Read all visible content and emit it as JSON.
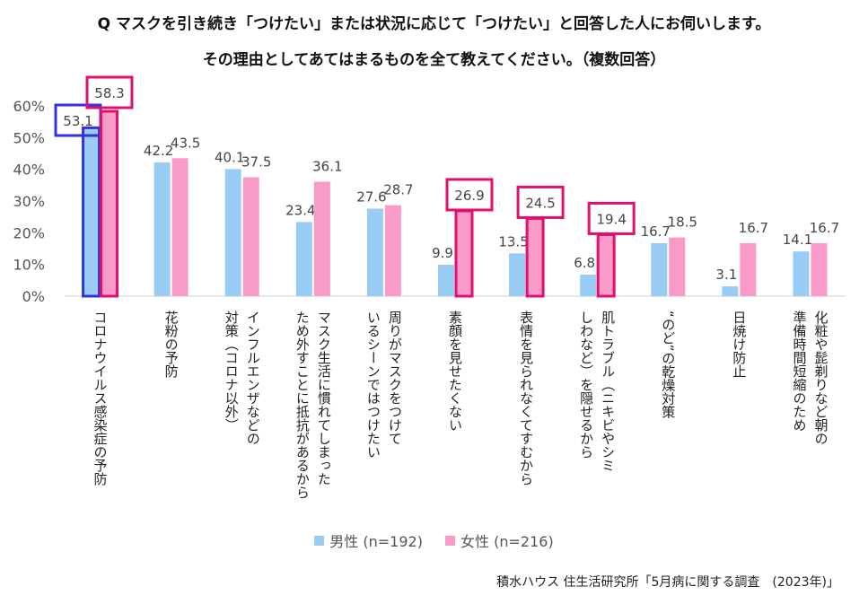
{
  "title_line1": "Q マスクを引き続き「つけたい」または状況に応じて「つけたい」と回答した人にお伺いします。",
  "title_line2": "その理由としてあてはまるものを全て教えてください。（複数回答）",
  "source": "積水ハウス 住生活研究所「5月病に関する調査　(2023年)」",
  "colors": {
    "male": "#99ccf5",
    "female": "#f99bc9",
    "highlight_blue": "#3333dd",
    "highlight_pink": "#e0106e"
  },
  "chart_data": {
    "type": "bar",
    "categories": [
      "コロナウイルス感染症の予防",
      "花粉の予防",
      "インフルエンザなどの対策（コロナ以外）",
      "マスク生活に慣れてしまったため外すことに抵抗があるから",
      "周りがマスクをつけているシーンではつけたい",
      "素顔を見せたくない",
      "表情を見られなくてすむから",
      "肌トラブル（ニキビやシミしわなど）を隠せるから",
      "“のど”の乾燥対策",
      "日焼け防止",
      "化粧や髭剃りなど朝の準備時間短縮のため"
    ],
    "category_lines": [
      [
        "コロナウイルス感染症の予防"
      ],
      [
        "花粉の予防"
      ],
      [
        "インフルエンザなどの",
        "対策（コロナ以外）"
      ],
      [
        "マスク生活に慣れてしまった",
        "ため外すことに抵抗があるから"
      ],
      [
        "周りがマスクをつけて",
        "いるシーンではつけたい"
      ],
      [
        "素顔を見せたくない"
      ],
      [
        "表情を見られなくてすむから"
      ],
      [
        "肌トラブル（ニキビやシミ",
        "しわなど）を隠せるから"
      ],
      [
        "“のど”の乾燥対策"
      ],
      [
        "日焼け防止"
      ],
      [
        "化粧や髭剃りなど朝の",
        "準備時間短縮のため"
      ]
    ],
    "series": [
      {
        "name": "男性 (n=192)",
        "values": [
          53.1,
          42.2,
          40.1,
          23.4,
          27.6,
          9.9,
          13.5,
          6.8,
          16.7,
          3.1,
          14.1
        ]
      },
      {
        "name": "女性 (n=216)",
        "values": [
          58.3,
          43.5,
          37.5,
          36.1,
          28.7,
          26.9,
          24.5,
          19.4,
          18.5,
          16.7,
          16.7
        ]
      }
    ],
    "value_labels": [
      [
        "53.1",
        "42.2",
        "40.1",
        "23.4",
        "27.6",
        "9.9",
        "13.5",
        "6.8",
        "16.7",
        "3.1",
        "14.1"
      ],
      [
        "58.3",
        "43.5",
        "37.5",
        "36.1",
        "28.7",
        "26.9",
        "24.5",
        "19.4",
        "18.5",
        "16.7",
        "16.7"
      ]
    ],
    "highlighted": {
      "male": [
        0
      ],
      "female": [
        0,
        5,
        6,
        7
      ]
    },
    "y_ticks": [
      "0%",
      "10%",
      "20%",
      "30%",
      "40%",
      "50%",
      "60%"
    ],
    "ylim": [
      0,
      60
    ],
    "legend_position": "bottom"
  }
}
